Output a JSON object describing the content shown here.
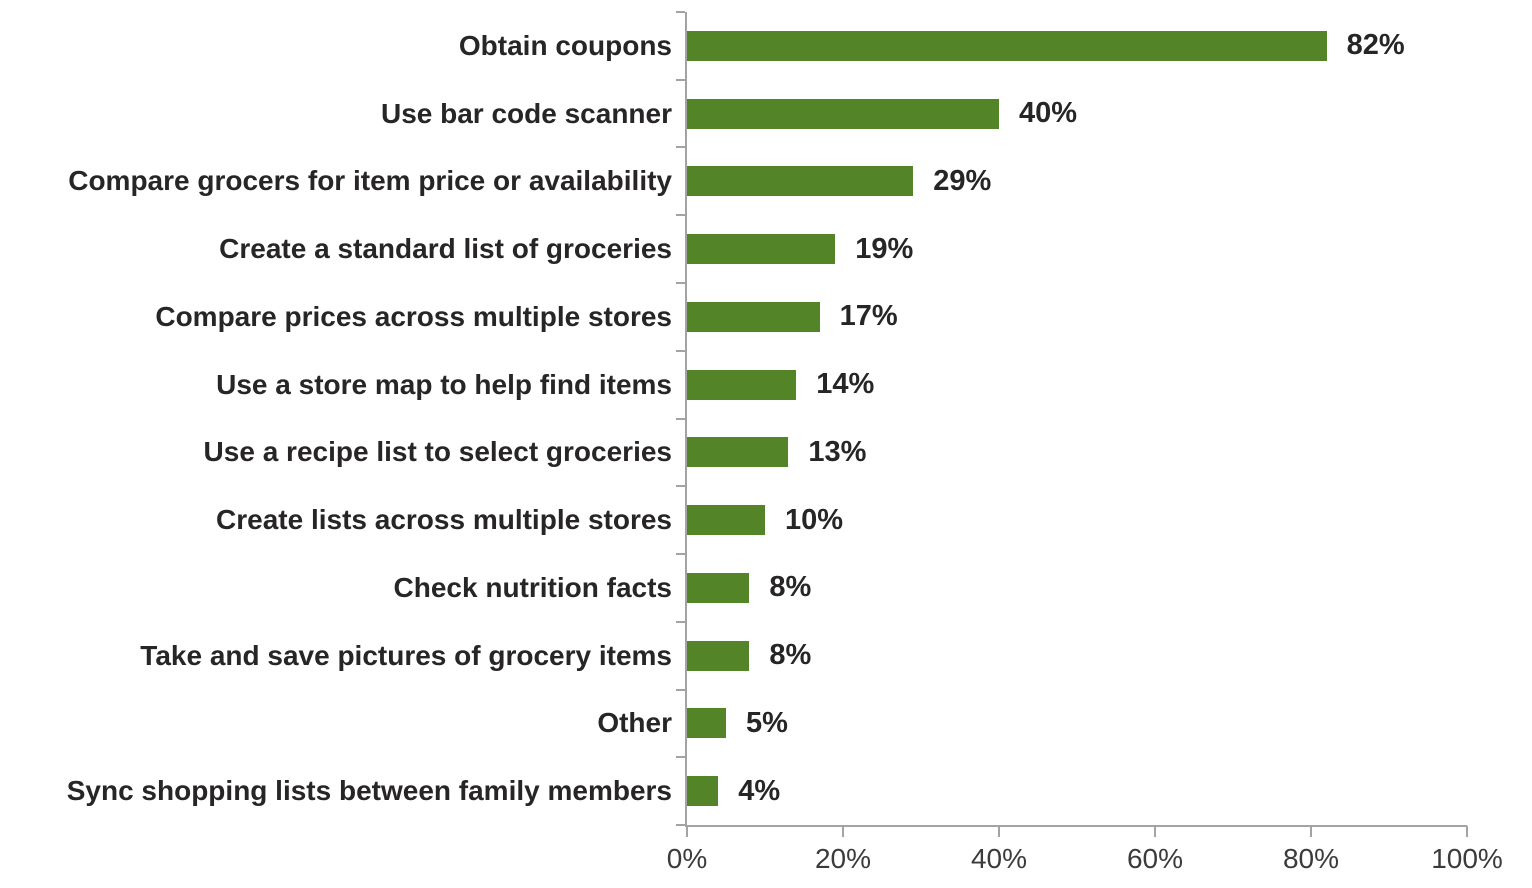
{
  "style": {
    "bar_color": "#538427",
    "text_color": "#272525",
    "tick_color": "#3b3b3b",
    "axis_color": "#a3a3a3",
    "background_color": "#ffffff"
  },
  "chart_data": {
    "type": "bar",
    "orientation": "horizontal",
    "title": "",
    "xlabel": "",
    "ylabel": "",
    "grid": false,
    "legend": false,
    "xlim": [
      0,
      100
    ],
    "x_ticks": [
      0,
      20,
      40,
      60,
      80,
      100
    ],
    "x_tick_labels": [
      "0%",
      "20%",
      "40%",
      "60%",
      "80%",
      "100%"
    ],
    "categories": [
      "Obtain coupons",
      "Use bar code scanner",
      "Compare grocers for item price or availability",
      "Create a standard list of groceries",
      "Compare prices across multiple stores",
      "Use a store map to help find items",
      "Use a recipe list to select groceries",
      "Create lists across multiple stores",
      "Check nutrition facts",
      "Take and save pictures of grocery items",
      "Other",
      "Sync shopping lists between family members"
    ],
    "values": [
      82,
      40,
      29,
      19,
      17,
      14,
      13,
      10,
      8,
      8,
      5,
      4
    ],
    "data_labels": [
      "82%",
      "40%",
      "29%",
      "19%",
      "17%",
      "14%",
      "13%",
      "10%",
      "8%",
      "8%",
      "5%",
      "4%"
    ]
  }
}
